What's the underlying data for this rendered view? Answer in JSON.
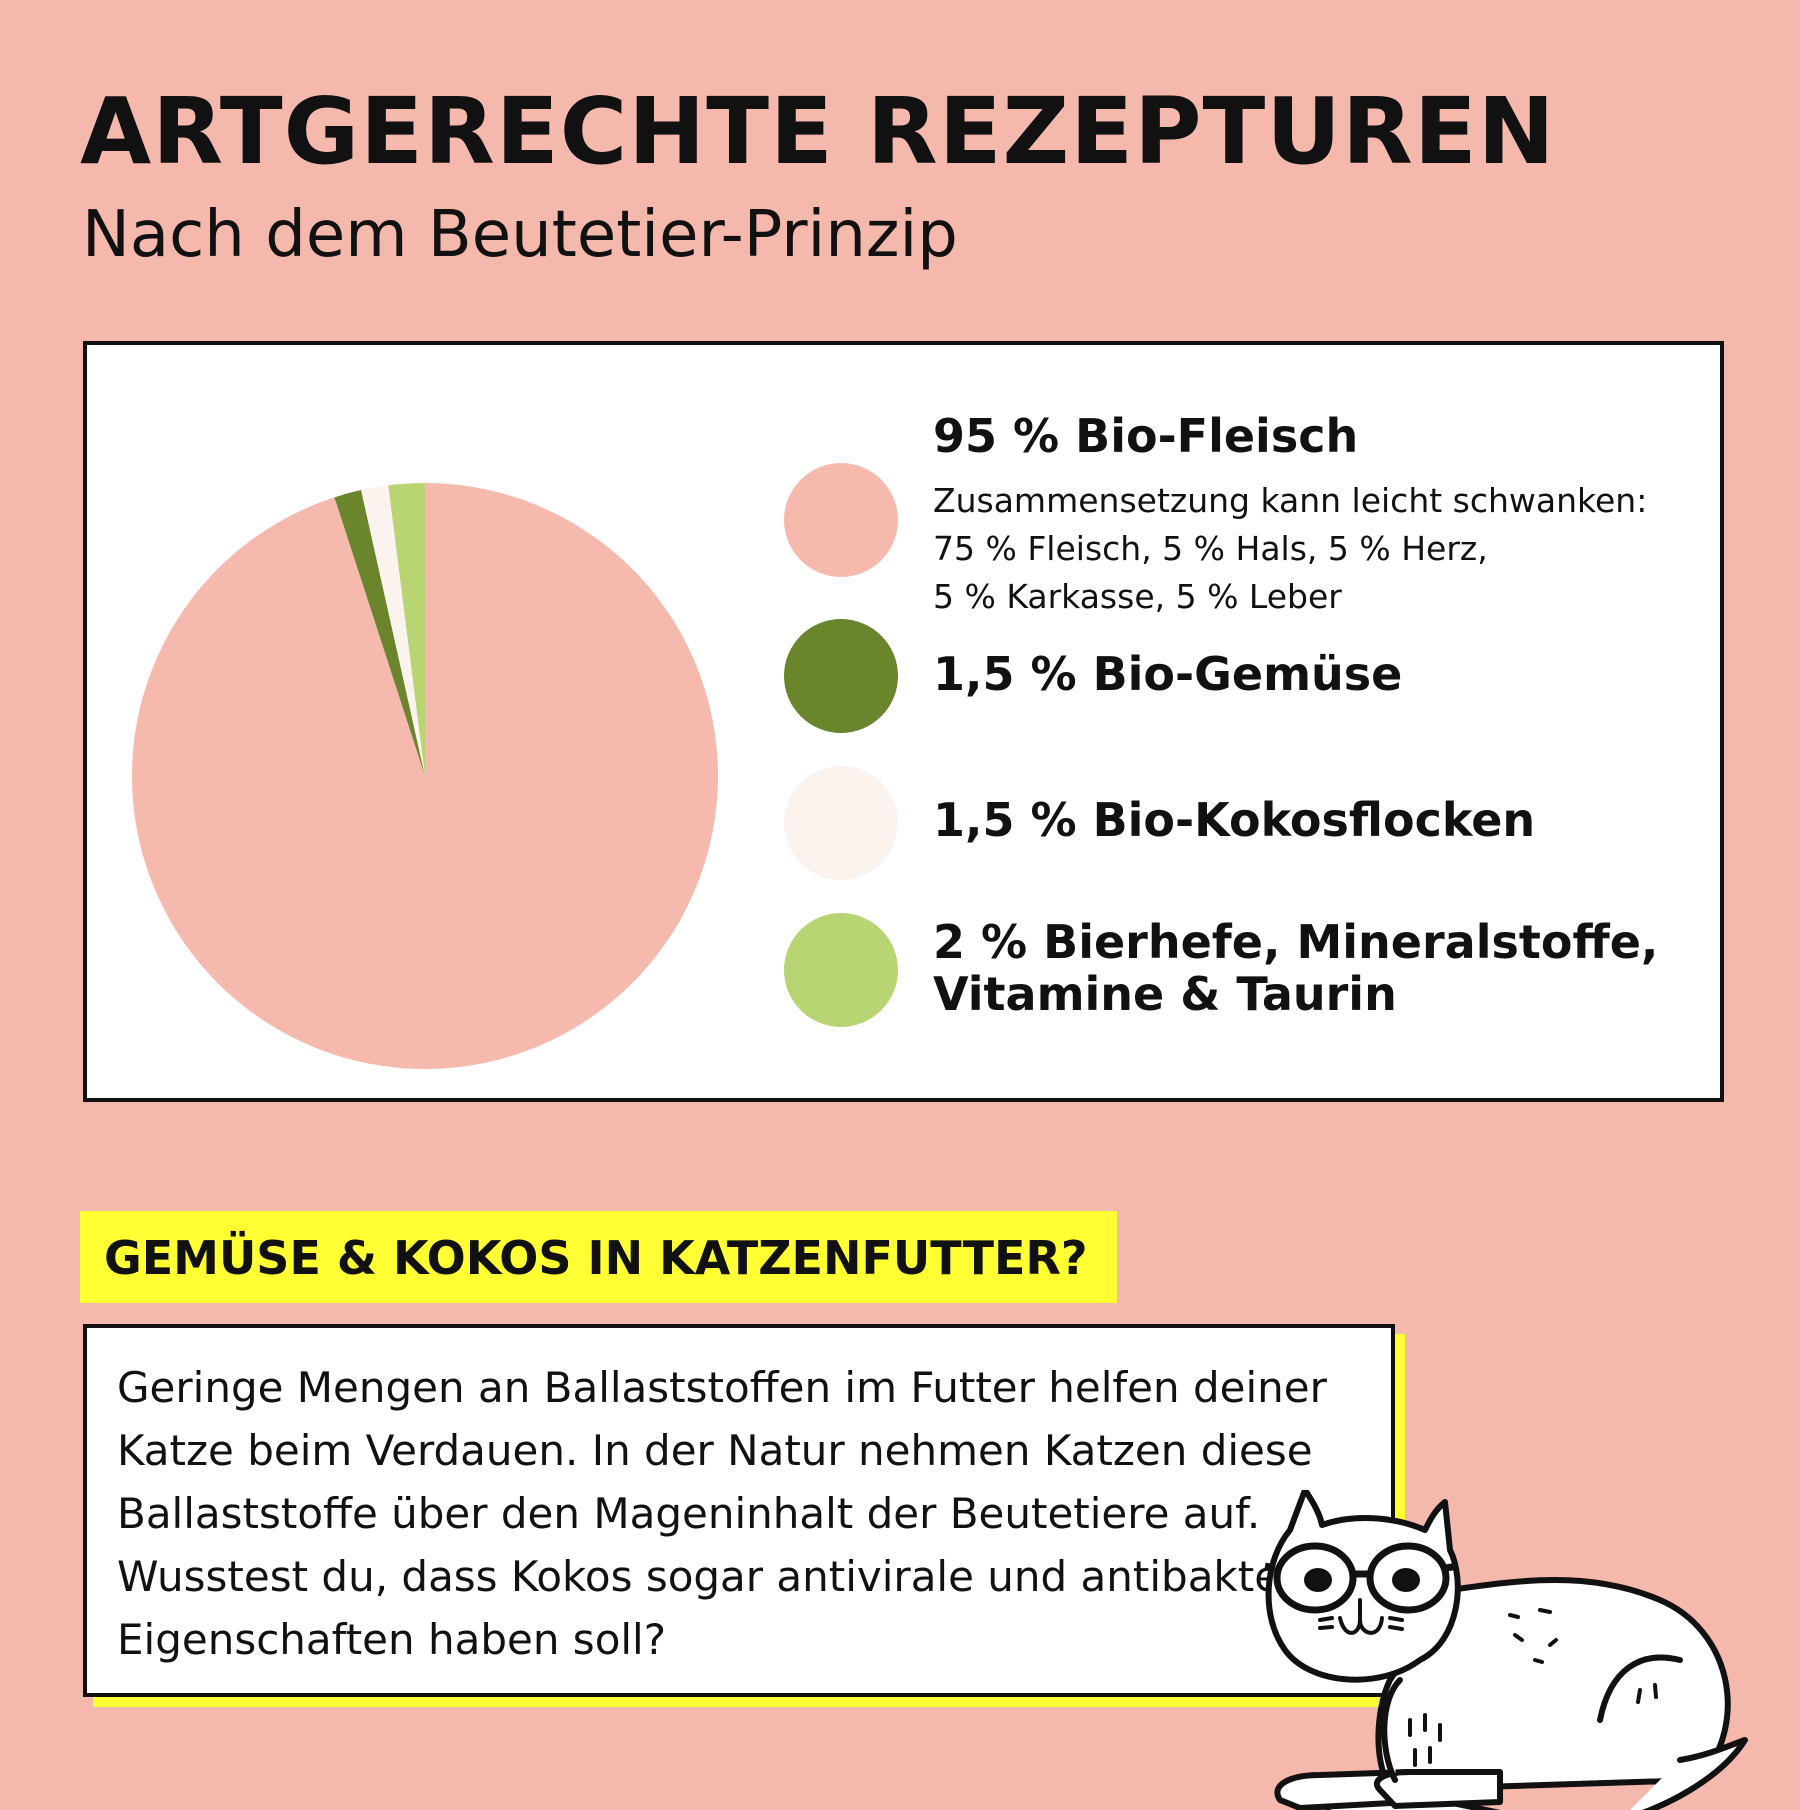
{
  "header": {
    "title": "ARTGERECHTE REZEPTUREN",
    "subtitle": "Nach dem Beutetier-Prinzip"
  },
  "chart_data": {
    "type": "pie",
    "start": "12 o'clock, clockwise",
    "slices": [
      {
        "label": "95 % Bio-Fleisch",
        "value": 95,
        "color": "#F5B9AD"
      },
      {
        "label": "1,5 % Bio-Gemüse",
        "value": 1.5,
        "color": "#6A852B"
      },
      {
        "label": "1,5 % Bio-Kokosflocken",
        "value": 1.5,
        "color": "#FBF3EE"
      },
      {
        "label": "2 % Bierhefe, Mineralstoffe, Vitamine & Taurin",
        "value": 2,
        "color": "#B9D472"
      }
    ],
    "legend": {
      "placement": "right",
      "fleisch_note": [
        "Zusammensetzung kann leicht schwanken:",
        "75 % Fleisch, 5 % Hals, 5 % Herz,",
        "5 % Karkasse, 5 % Leber"
      ],
      "bierhefe_lines": [
        "2 % Bierhefe,  Mineralstoffe,",
        "Vitamine & Taurin"
      ]
    }
  },
  "info": {
    "heading": "GEMÜSE & KOKOS IN KATZENFUTTER?",
    "body": "Geringe Mengen an Ballaststoffen im Futter helfen deiner Katze beim Verdauen. In der Natur nehmen Katzen diese Ballaststoffe über den Mageninhalt der Beutetiere auf. Wusstest du, dass Kokos sogar antivirale und antibakterielle Eigenschaften haben soll?"
  },
  "colors": {
    "background": "#F5B8AC",
    "highlight": "#FFFF33"
  },
  "illustration": "cat-with-glasses"
}
